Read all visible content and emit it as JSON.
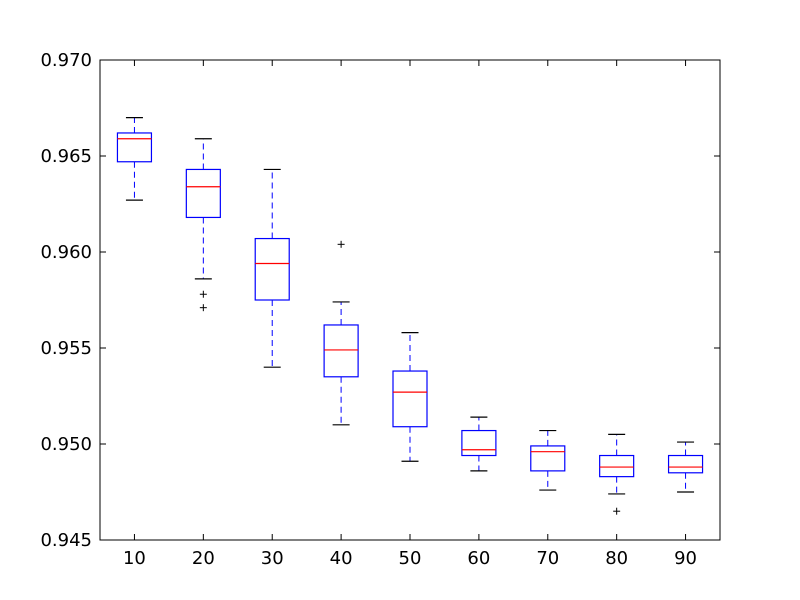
{
  "chart_data": {
    "type": "box",
    "title": "",
    "xlabel": "",
    "ylabel": "",
    "ylim": [
      0.945,
      0.97
    ],
    "yticks": [
      "0.945",
      "0.950",
      "0.955",
      "0.960",
      "0.965",
      "0.970"
    ],
    "ytick_values": [
      0.945,
      0.95,
      0.955,
      0.96,
      0.965,
      0.97
    ],
    "categories": [
      "10",
      "20",
      "30",
      "40",
      "50",
      "60",
      "70",
      "80",
      "90"
    ],
    "grid": false,
    "colors": {
      "box": "#0000ff",
      "median": "#ff0000",
      "whisker": "#0000ff",
      "cap": "#000000",
      "flier": "#000000"
    },
    "boxes": [
      {
        "category": "10",
        "whisker_low": 0.9627,
        "q1": 0.9647,
        "median": 0.9659,
        "q3": 0.9662,
        "whisker_high": 0.967,
        "outliers": []
      },
      {
        "category": "20",
        "whisker_low": 0.9586,
        "q1": 0.9618,
        "median": 0.9634,
        "q3": 0.9643,
        "whisker_high": 0.9659,
        "outliers": [
          0.9578,
          0.9571
        ]
      },
      {
        "category": "30",
        "whisker_low": 0.954,
        "q1": 0.9575,
        "median": 0.9594,
        "q3": 0.9607,
        "whisker_high": 0.9643,
        "outliers": []
      },
      {
        "category": "40",
        "whisker_low": 0.951,
        "q1": 0.9535,
        "median": 0.9549,
        "q3": 0.9562,
        "whisker_high": 0.9574,
        "outliers": [
          0.9604
        ]
      },
      {
        "category": "50",
        "whisker_low": 0.9491,
        "q1": 0.9509,
        "median": 0.9527,
        "q3": 0.9538,
        "whisker_high": 0.9558,
        "outliers": []
      },
      {
        "category": "60",
        "whisker_low": 0.9486,
        "q1": 0.9494,
        "median": 0.9497,
        "q3": 0.9507,
        "whisker_high": 0.9514,
        "outliers": []
      },
      {
        "category": "70",
        "whisker_low": 0.9476,
        "q1": 0.9486,
        "median": 0.9496,
        "q3": 0.9499,
        "whisker_high": 0.9507,
        "outliers": []
      },
      {
        "category": "80",
        "whisker_low": 0.9474,
        "q1": 0.9483,
        "median": 0.9488,
        "q3": 0.9494,
        "whisker_high": 0.9505,
        "outliers": [
          0.9465
        ]
      },
      {
        "category": "90",
        "whisker_low": 0.9475,
        "q1": 0.9485,
        "median": 0.9488,
        "q3": 0.9494,
        "whisker_high": 0.9501,
        "outliers": []
      }
    ]
  }
}
